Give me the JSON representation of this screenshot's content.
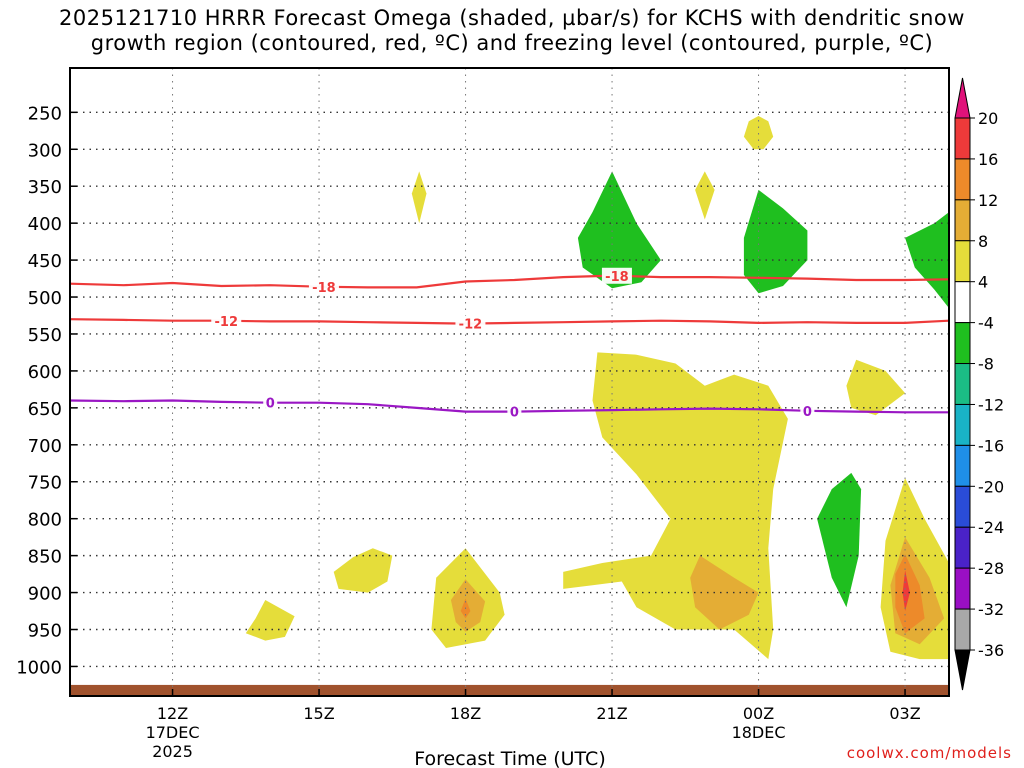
{
  "title_line1": "2025121710 HRRR Forecast Omega (shaded, µbar/s) for KCHS with dendritic snow",
  "title_line2": "growth region (contoured, red, ºC) and freezing level (contoured, purple, ºC)",
  "credit": "coolwx.com/models",
  "chart_data": {
    "type": "contour",
    "title": "2025121710 HRRR Forecast Omega (shaded, µbar/s) for KCHS with dendritic snow growth region (contoured, red, ºC) and freezing level (contoured, purple, ºC)",
    "xlabel": "Forecast Time (UTC)",
    "ylabel": "",
    "xlim": [
      9.9,
      27.9
    ],
    "ylim": [
      1040,
      190
    ],
    "x_ticks": [
      {
        "x": 12,
        "lines": [
          "12Z",
          "17DEC",
          "2025"
        ]
      },
      {
        "x": 15,
        "lines": [
          "15Z"
        ]
      },
      {
        "x": 18,
        "lines": [
          "18Z"
        ]
      },
      {
        "x": 21,
        "lines": [
          "21Z"
        ]
      },
      {
        "x": 24,
        "lines": [
          "00Z",
          "18DEC"
        ]
      },
      {
        "x": 27,
        "lines": [
          "03Z"
        ]
      }
    ],
    "y_ticks": [
      250,
      300,
      350,
      400,
      450,
      500,
      550,
      600,
      650,
      700,
      750,
      800,
      850,
      900,
      950,
      1000
    ],
    "y_tick_labels": [
      "250",
      "300",
      "350",
      "400",
      "450",
      "500",
      "550",
      "600",
      "650",
      "700",
      "750",
      "800",
      "850",
      "900",
      "950",
      "1000"
    ],
    "ground": {
      "top_pressure": 1025,
      "color": "#a0522d"
    },
    "contours": [
      {
        "name": "-18C",
        "color": "#ee3a3a",
        "label": "-18",
        "points": [
          [
            9.9,
            482
          ],
          [
            11,
            484
          ],
          [
            12,
            481
          ],
          [
            13,
            485
          ],
          [
            14,
            484
          ],
          [
            15,
            486
          ],
          [
            16,
            487
          ],
          [
            17,
            487
          ],
          [
            18,
            479
          ],
          [
            19,
            477
          ],
          [
            20,
            473
          ],
          [
            21,
            471
          ],
          [
            22,
            473
          ],
          [
            23,
            473
          ],
          [
            24,
            474
          ],
          [
            25,
            475
          ],
          [
            26,
            477
          ],
          [
            27,
            477
          ],
          [
            27.9,
            476
          ]
        ],
        "labels_at": [
          15.1,
          21.1
        ]
      },
      {
        "name": "-12C",
        "color": "#ee3a3a",
        "label": "-12",
        "points": [
          [
            9.9,
            530
          ],
          [
            11,
            531
          ],
          [
            12,
            532
          ],
          [
            13,
            532
          ],
          [
            14,
            533
          ],
          [
            15,
            533
          ],
          [
            16,
            534
          ],
          [
            17,
            535
          ],
          [
            18,
            536
          ],
          [
            19,
            535
          ],
          [
            20,
            534
          ],
          [
            21,
            533
          ],
          [
            22,
            532
          ],
          [
            23,
            533
          ],
          [
            24,
            535
          ],
          [
            25,
            534
          ],
          [
            26,
            535
          ],
          [
            27,
            535
          ],
          [
            27.9,
            532
          ]
        ],
        "labels_at": [
          13.1,
          18.1
        ]
      },
      {
        "name": "0C",
        "color": "#9a17c4",
        "label": "0",
        "points": [
          [
            9.9,
            640
          ],
          [
            11,
            641
          ],
          [
            12,
            640
          ],
          [
            13,
            642
          ],
          [
            14,
            643
          ],
          [
            15,
            643
          ],
          [
            16,
            645
          ],
          [
            17,
            650
          ],
          [
            18,
            655
          ],
          [
            19,
            655
          ],
          [
            20,
            654
          ],
          [
            21,
            653
          ],
          [
            22,
            652
          ],
          [
            23,
            651
          ],
          [
            24,
            652
          ],
          [
            25,
            654
          ],
          [
            26,
            655
          ],
          [
            27,
            656
          ],
          [
            27.9,
            656
          ]
        ],
        "labels_at": [
          14.0,
          19.0,
          25.0
        ]
      }
    ],
    "omega_regions": [
      {
        "level": 4,
        "color": "#e5dd3a",
        "points": [
          [
            24.0,
            255
          ],
          [
            24.2,
            262
          ],
          [
            24.3,
            283
          ],
          [
            24.1,
            300
          ],
          [
            23.9,
            300
          ],
          [
            23.7,
            283
          ],
          [
            23.8,
            262
          ]
        ]
      },
      {
        "level": 4,
        "color": "#e5dd3a",
        "points": [
          [
            17.05,
            330
          ],
          [
            17.2,
            360
          ],
          [
            17.05,
            400
          ],
          [
            16.9,
            360
          ]
        ]
      },
      {
        "level": 4,
        "color": "#e5dd3a",
        "points": [
          [
            22.9,
            330
          ],
          [
            23.1,
            355
          ],
          [
            22.9,
            395
          ],
          [
            22.7,
            355
          ]
        ]
      },
      {
        "level": -4,
        "color": "#1fbf1f",
        "points": [
          [
            21.0,
            330
          ],
          [
            21.5,
            400
          ],
          [
            22.0,
            450
          ],
          [
            21.6,
            480
          ],
          [
            21.0,
            488
          ],
          [
            20.4,
            460
          ],
          [
            20.3,
            420
          ],
          [
            20.6,
            385
          ]
        ]
      },
      {
        "level": -4,
        "color": "#1fbf1f",
        "points": [
          [
            24.0,
            355
          ],
          [
            24.5,
            380
          ],
          [
            25.0,
            410
          ],
          [
            25.0,
            450
          ],
          [
            24.5,
            485
          ],
          [
            24.0,
            495
          ],
          [
            23.7,
            470
          ],
          [
            23.7,
            420
          ]
        ]
      },
      {
        "level": -4,
        "color": "#1fbf1f",
        "points": [
          [
            27.9,
            385
          ],
          [
            27.9,
            515
          ],
          [
            27.6,
            490
          ],
          [
            27.2,
            460
          ],
          [
            27.0,
            420
          ],
          [
            27.6,
            400
          ]
        ]
      },
      {
        "level": -4,
        "color": "#1fbf1f",
        "points": [
          [
            25.9,
            738
          ],
          [
            26.1,
            760
          ],
          [
            26.05,
            850
          ],
          [
            25.8,
            920
          ],
          [
            25.5,
            880
          ],
          [
            25.2,
            800
          ],
          [
            25.5,
            760
          ]
        ]
      },
      {
        "level": 4,
        "color": "#e5dd3a",
        "points": [
          [
            20.7,
            575
          ],
          [
            21.5,
            578
          ],
          [
            22.3,
            590
          ],
          [
            22.9,
            620
          ],
          [
            23.5,
            605
          ],
          [
            24.2,
            620
          ],
          [
            24.6,
            665
          ],
          [
            24.3,
            760
          ],
          [
            24.2,
            840
          ],
          [
            24.3,
            950
          ],
          [
            24.2,
            990
          ],
          [
            23.5,
            950
          ],
          [
            22.3,
            950
          ],
          [
            21.5,
            920
          ],
          [
            21.2,
            885
          ],
          [
            20.6,
            890
          ],
          [
            20.0,
            895
          ],
          [
            20.0,
            872
          ],
          [
            20.8,
            860
          ],
          [
            21.8,
            850
          ],
          [
            22.2,
            800
          ],
          [
            21.5,
            740
          ],
          [
            20.8,
            690
          ],
          [
            20.6,
            640
          ]
        ]
      },
      {
        "level": 8,
        "color": "#e4ad35",
        "points": [
          [
            22.8,
            850
          ],
          [
            23.5,
            880
          ],
          [
            24.0,
            900
          ],
          [
            23.8,
            930
          ],
          [
            23.2,
            950
          ],
          [
            22.7,
            920
          ],
          [
            22.6,
            880
          ]
        ]
      },
      {
        "level": 4,
        "color": "#e5dd3a",
        "points": [
          [
            26.0,
            585
          ],
          [
            26.6,
            600
          ],
          [
            27.0,
            630
          ],
          [
            26.4,
            660
          ],
          [
            25.9,
            650
          ],
          [
            25.8,
            620
          ]
        ]
      },
      {
        "level": 4,
        "color": "#e5dd3a",
        "points": [
          [
            27.0,
            745
          ],
          [
            27.4,
            800
          ],
          [
            27.9,
            860
          ],
          [
            27.9,
            990
          ],
          [
            27.3,
            990
          ],
          [
            26.7,
            980
          ],
          [
            26.5,
            920
          ],
          [
            26.6,
            830
          ]
        ]
      },
      {
        "level": 8,
        "color": "#e4ad35",
        "points": [
          [
            27.0,
            825
          ],
          [
            27.5,
            880
          ],
          [
            27.8,
            935
          ],
          [
            27.3,
            970
          ],
          [
            26.8,
            955
          ],
          [
            26.7,
            890
          ]
        ]
      },
      {
        "level": 12,
        "color": "#ed8a2a",
        "points": [
          [
            27.0,
            848
          ],
          [
            27.3,
            890
          ],
          [
            27.4,
            935
          ],
          [
            27.0,
            955
          ],
          [
            26.8,
            920
          ],
          [
            26.8,
            875
          ]
        ]
      },
      {
        "level": 16,
        "color": "#ee3a3a",
        "points": [
          [
            27.0,
            870
          ],
          [
            27.1,
            900
          ],
          [
            27.0,
            925
          ],
          [
            26.95,
            900
          ]
        ]
      },
      {
        "level": 4,
        "color": "#e5dd3a",
        "points": [
          [
            18.0,
            840
          ],
          [
            18.7,
            900
          ],
          [
            18.8,
            930
          ],
          [
            18.4,
            965
          ],
          [
            17.6,
            975
          ],
          [
            17.3,
            950
          ],
          [
            17.4,
            880
          ]
        ]
      },
      {
        "level": 8,
        "color": "#e4ad35",
        "points": [
          [
            18.0,
            882
          ],
          [
            18.4,
            912
          ],
          [
            18.3,
            940
          ],
          [
            18.0,
            953
          ],
          [
            17.8,
            940
          ],
          [
            17.7,
            910
          ]
        ]
      },
      {
        "level": 12,
        "color": "#ed8a2a",
        "points": [
          [
            18.0,
            908
          ],
          [
            18.1,
            925
          ],
          [
            18.0,
            935
          ],
          [
            17.9,
            925
          ]
        ]
      },
      {
        "level": 4,
        "color": "#e5dd3a",
        "points": [
          [
            16.1,
            840
          ],
          [
            16.5,
            850
          ],
          [
            16.4,
            885
          ],
          [
            16.0,
            900
          ],
          [
            15.4,
            895
          ],
          [
            15.3,
            872
          ],
          [
            15.7,
            852
          ]
        ]
      },
      {
        "level": 4,
        "color": "#e5dd3a",
        "points": [
          [
            13.9,
            910
          ],
          [
            14.5,
            932
          ],
          [
            14.3,
            960
          ],
          [
            13.9,
            965
          ],
          [
            13.5,
            955
          ],
          [
            13.7,
            935
          ]
        ]
      }
    ],
    "colorbar": {
      "labels": [
        "20",
        "16",
        "12",
        "8",
        "4",
        "-4",
        "-8",
        "-12",
        "-16",
        "-20",
        "-24",
        "-28",
        "-32",
        "-36"
      ],
      "bins": [
        {
          "color": "#ee3a3a"
        },
        {
          "color": "#ed8a2a"
        },
        {
          "color": "#e4ad35"
        },
        {
          "color": "#e5dd3a"
        },
        {
          "color": "#ffffff"
        },
        {
          "color": "#1fbf1f"
        },
        {
          "color": "#1bbd85"
        },
        {
          "color": "#19b3c6"
        },
        {
          "color": "#1f8fe8"
        },
        {
          "color": "#2a4cd8"
        },
        {
          "color": "#4a22c8"
        },
        {
          "color": "#9a0fc4"
        },
        {
          "color": "#a8a8a8"
        }
      ],
      "top_arrow_color": "#e0127a",
      "bottom_arrow_color": "#000000"
    }
  }
}
